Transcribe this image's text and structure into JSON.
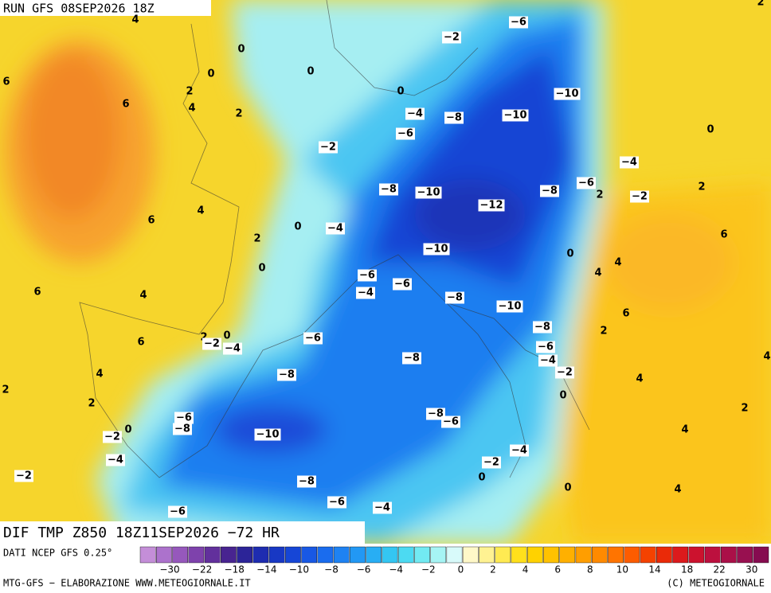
{
  "header": {
    "run": "RUN GFS 08SEP2026 18Z"
  },
  "title": "DIF TMP Z850 18Z11SEP2026 −72 HR",
  "source": "DATI NCEP GFS 0.25°",
  "footer": {
    "left": "MTG-GFS − ELABORAZIONE WWW.METEOGIORNALE.IT",
    "right": "(C) METEOGIORNALE"
  },
  "colorbar": {
    "colors": [
      "#c48ed8",
      "#ac72cc",
      "#9658bc",
      "#7e42ac",
      "#62309c",
      "#482490",
      "#2c2498",
      "#1e2cb0",
      "#1838c4",
      "#1646d6",
      "#1858e4",
      "#1a6cee",
      "#1e82f2",
      "#2298f4",
      "#28aef4",
      "#34c6f2",
      "#4cdaf2",
      "#72eaf2",
      "#a6f4f4",
      "#d8fafa",
      "#fff8c8",
      "#fff292",
      "#ffea52",
      "#ffe01c",
      "#ffd200",
      "#ffc200",
      "#ffb000",
      "#ff9e00",
      "#ff8a00",
      "#ff7400",
      "#fc5c00",
      "#f44200",
      "#ea2a08",
      "#dc1a1c",
      "#cc122e",
      "#bc103e",
      "#aa1048",
      "#981050",
      "#860c50"
    ],
    "labels": [
      "−30",
      "−22",
      "−18",
      "−14",
      "−10",
      "−8",
      "−6",
      "−4",
      "−2",
      "0",
      "2",
      "4",
      "6",
      "8",
      "10",
      "14",
      "18",
      "22",
      "30"
    ]
  },
  "map": {
    "labels": [
      "4",
      "0",
      "6",
      "0",
      "0",
      "2",
      "6",
      "4",
      "2",
      "0",
      "−2",
      "−6",
      "2",
      "−10",
      "−10",
      "−4",
      "−8",
      "−6",
      "−2",
      "0",
      "−4",
      "−8",
      "−10",
      "−12",
      "−8",
      "−6",
      "2",
      "−2",
      "2",
      "4",
      "6",
      "0",
      "−4",
      "2",
      "6",
      "−10",
      "0",
      "4",
      "0",
      "4",
      "−6",
      "−4",
      "−6",
      "6",
      "4",
      "−8",
      "−10",
      "6",
      "−8",
      "2",
      "6",
      "0",
      "2",
      "−2",
      "−4",
      "−6",
      "−6",
      "−4",
      "4",
      "−8",
      "4",
      "−8",
      "−2",
      "4",
      "2",
      "0",
      "2",
      "−8",
      "−6",
      "2",
      "−6",
      "−8",
      "0",
      "−2",
      "−10",
      "4",
      "−4",
      "−4",
      "−2",
      "−2",
      "0",
      "−8",
      "0",
      "4",
      "−6",
      "−4",
      "−6"
    ]
  }
}
